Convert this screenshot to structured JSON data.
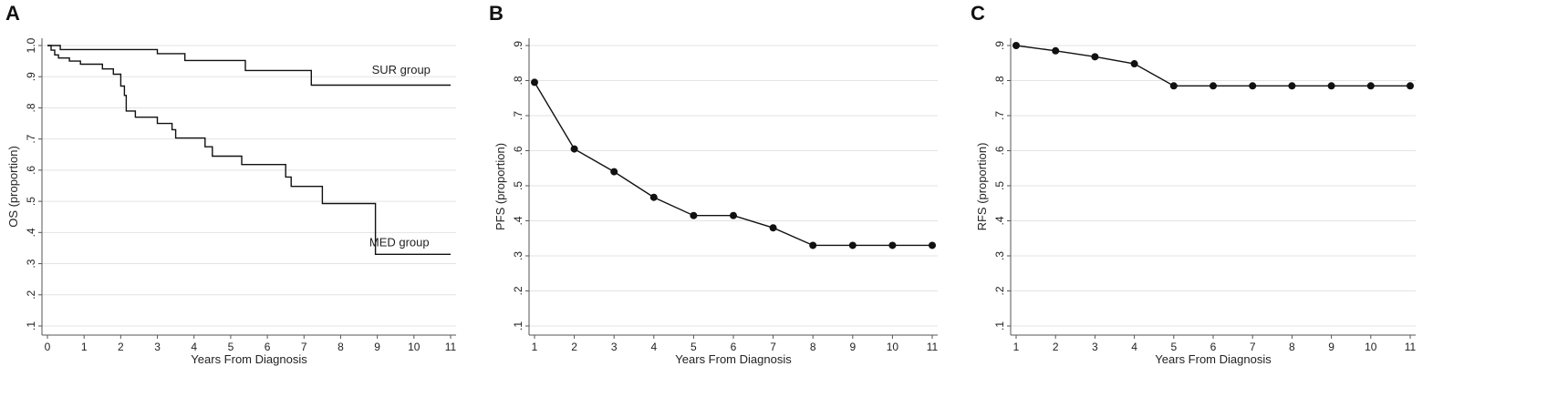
{
  "chart_data": [
    {
      "panel": "A",
      "type": "line",
      "xlabel": "Years From Diagnosis",
      "ylabel": "OS (proportion)",
      "xlim": [
        0,
        11
      ],
      "ylim": [
        0.1,
        1.0
      ],
      "x_ticks": [
        "0",
        "1",
        "2",
        "3",
        "4",
        "5",
        "6",
        "7",
        "8",
        "9",
        "10",
        "11"
      ],
      "y_ticks": [
        ".1",
        ".2",
        ".3",
        ".4",
        ".5",
        ".6",
        ".7",
        ".8",
        ".9",
        "1.0"
      ],
      "grid": "horizontal",
      "series": [
        {
          "name": "SUR group",
          "step": true,
          "points": [
            [
              0,
              1.0
            ],
            [
              0.35,
              1.0
            ],
            [
              0.35,
              0.987
            ],
            [
              3.0,
              0.987
            ],
            [
              3.0,
              0.974
            ],
            [
              3.75,
              0.974
            ],
            [
              3.75,
              0.952
            ],
            [
              5.4,
              0.952
            ],
            [
              5.4,
              0.92
            ],
            [
              7.2,
              0.92
            ],
            [
              7.2,
              0.873
            ],
            [
              11,
              0.873
            ]
          ]
        },
        {
          "name": "MED group",
          "step": true,
          "points": [
            [
              0,
              1.0
            ],
            [
              0.1,
              1.0
            ],
            [
              0.1,
              0.985
            ],
            [
              0.2,
              0.985
            ],
            [
              0.2,
              0.97
            ],
            [
              0.3,
              0.97
            ],
            [
              0.3,
              0.96
            ],
            [
              0.6,
              0.96
            ],
            [
              0.6,
              0.95
            ],
            [
              0.9,
              0.95
            ],
            [
              0.9,
              0.94
            ],
            [
              1.5,
              0.94
            ],
            [
              1.5,
              0.925
            ],
            [
              1.8,
              0.925
            ],
            [
              1.8,
              0.908
            ],
            [
              2.0,
              0.908
            ],
            [
              2.0,
              0.87
            ],
            [
              2.1,
              0.87
            ],
            [
              2.1,
              0.84
            ],
            [
              2.15,
              0.84
            ],
            [
              2.15,
              0.79
            ],
            [
              2.4,
              0.79
            ],
            [
              2.4,
              0.77
            ],
            [
              3.0,
              0.77
            ],
            [
              3.0,
              0.75
            ],
            [
              3.4,
              0.75
            ],
            [
              3.4,
              0.73
            ],
            [
              3.5,
              0.73
            ],
            [
              3.5,
              0.703
            ],
            [
              4.3,
              0.703
            ],
            [
              4.3,
              0.675
            ],
            [
              4.5,
              0.675
            ],
            [
              4.5,
              0.645
            ],
            [
              5.3,
              0.645
            ],
            [
              5.3,
              0.618
            ],
            [
              6.5,
              0.618
            ],
            [
              6.5,
              0.578
            ],
            [
              6.65,
              0.578
            ],
            [
              6.65,
              0.548
            ],
            [
              7.5,
              0.548
            ],
            [
              7.5,
              0.493
            ],
            [
              8.95,
              0.493
            ],
            [
              8.95,
              0.33
            ],
            [
              11,
              0.33
            ]
          ]
        }
      ],
      "annotations": [
        {
          "text": "SUR group",
          "x": 9.65,
          "y": 0.91
        },
        {
          "text": "MED group",
          "x": 9.6,
          "y": 0.355
        }
      ]
    },
    {
      "panel": "B",
      "type": "line",
      "xlabel": "Years From Diagnosis",
      "ylabel": "PFS (proportion)",
      "xlim": [
        1,
        11
      ],
      "ylim": [
        0.1,
        0.9
      ],
      "x_ticks": [
        "1",
        "2",
        "3",
        "4",
        "5",
        "6",
        "7",
        "8",
        "9",
        "10",
        "11"
      ],
      "y_ticks": [
        ".1",
        ".2",
        ".3",
        ".4",
        ".5",
        ".6",
        ".7",
        ".8",
        ".9"
      ],
      "grid": "horizontal",
      "series": [
        {
          "markers": true,
          "x": [
            1,
            2,
            3,
            4,
            5,
            6,
            7,
            8,
            9,
            10,
            11
          ],
          "y": [
            0.795,
            0.605,
            0.54,
            0.467,
            0.415,
            0.415,
            0.38,
            0.33,
            0.33,
            0.33,
            0.33
          ]
        }
      ]
    },
    {
      "panel": "C",
      "type": "line",
      "xlabel": "Years From Diagnosis",
      "ylabel": "RFS (proportion)",
      "xlim": [
        1,
        11
      ],
      "ylim": [
        0.1,
        0.9
      ],
      "x_ticks": [
        "1",
        "2",
        "3",
        "4",
        "5",
        "6",
        "7",
        "8",
        "9",
        "10",
        "11"
      ],
      "y_ticks": [
        ".1",
        ".2",
        ".3",
        ".4",
        ".5",
        ".6",
        ".7",
        ".8",
        ".9"
      ],
      "grid": "horizontal",
      "series": [
        {
          "markers": true,
          "x": [
            1,
            2,
            3,
            4,
            5,
            6,
            7,
            8,
            9,
            10,
            11
          ],
          "y": [
            0.9,
            0.885,
            0.868,
            0.848,
            0.785,
            0.785,
            0.785,
            0.785,
            0.785,
            0.785,
            0.785
          ]
        }
      ]
    }
  ],
  "panels": {
    "A": "A",
    "B": "B",
    "C": "C"
  },
  "colors": {
    "line": "#111111",
    "grid": "#e3e3e3",
    "axis": "#555555"
  }
}
